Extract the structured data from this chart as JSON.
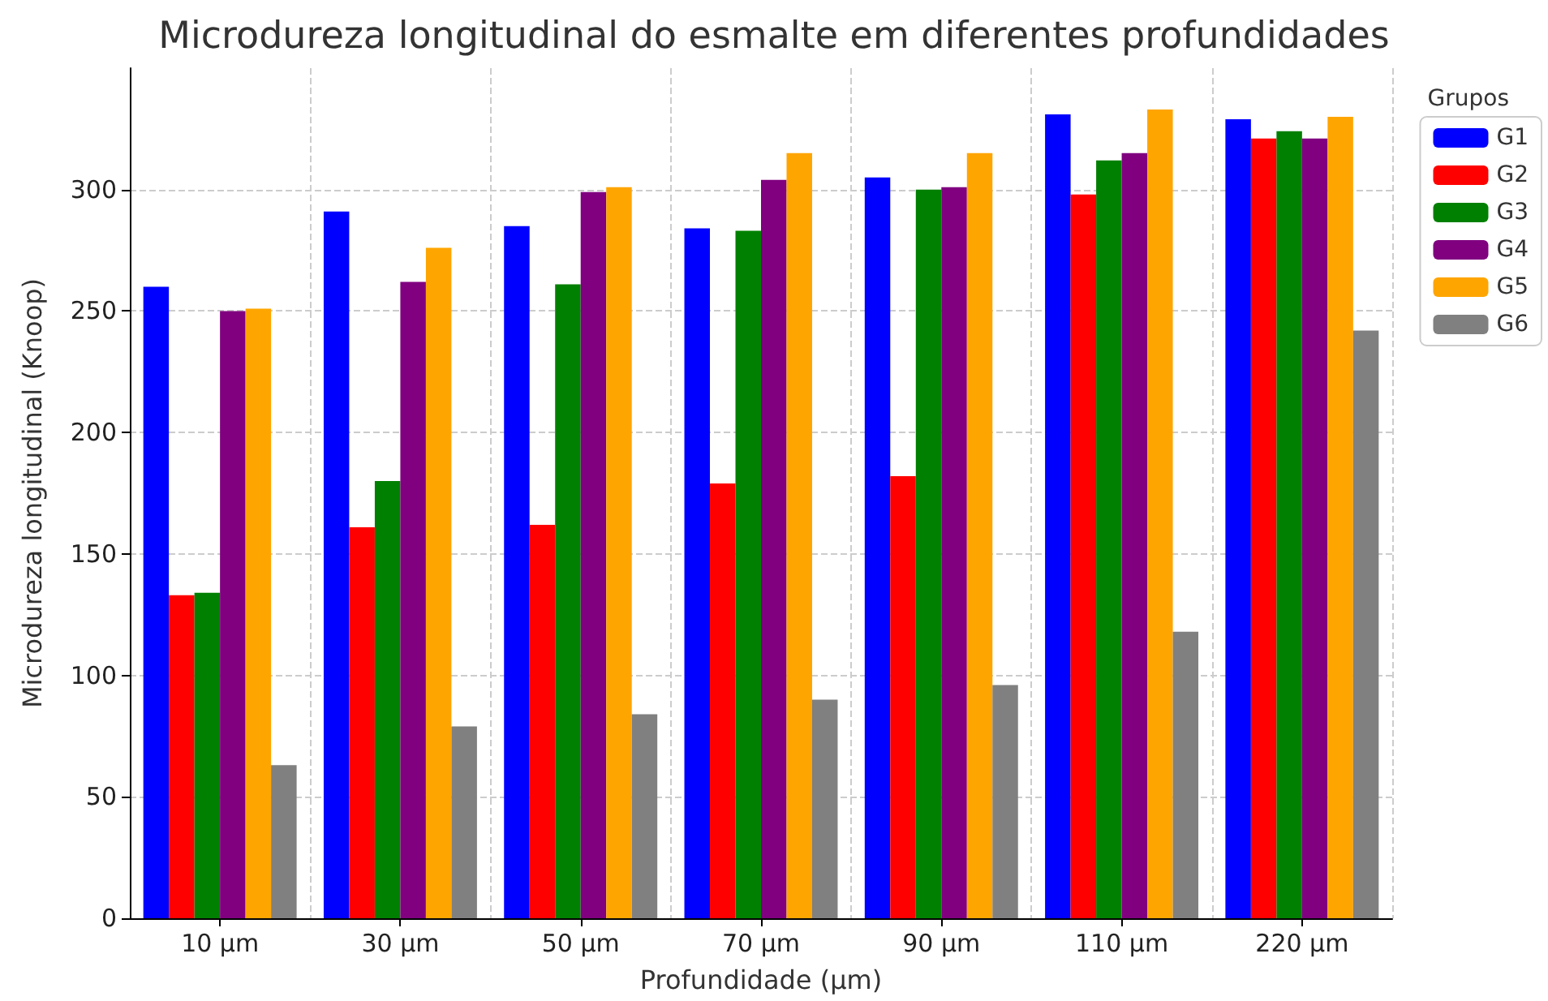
{
  "chart_data": {
    "type": "bar",
    "title": "Microdureza longitudinal do esmalte em diferentes profundidades",
    "xlabel": "Profundidade (µm)",
    "ylabel": "Microdureza longitudinal (Knoop)",
    "legend_title": "Grupos",
    "categories": [
      "10 µm",
      "30 µm",
      "50 µm",
      "70 µm",
      "90 µm",
      "110 µm",
      "220 µm"
    ],
    "series": [
      {
        "name": "G1",
        "color": "#0000ff",
        "values": [
          260,
          291,
          285,
          284,
          305,
          331,
          329
        ]
      },
      {
        "name": "G2",
        "color": "#ff0000",
        "values": [
          133,
          161,
          162,
          179,
          182,
          298,
          321
        ]
      },
      {
        "name": "G3",
        "color": "#008000",
        "values": [
          134,
          180,
          261,
          283,
          300,
          312,
          324
        ]
      },
      {
        "name": "G4",
        "color": "#800080",
        "values": [
          250,
          262,
          299,
          304,
          301,
          315,
          321
        ]
      },
      {
        "name": "G5",
        "color": "#ffa500",
        "values": [
          251,
          276,
          301,
          315,
          315,
          333,
          330
        ]
      },
      {
        "name": "G6",
        "color": "#808080",
        "values": [
          63,
          79,
          84,
          90,
          96,
          118,
          242
        ]
      }
    ],
    "ylim": [
      0,
      350
    ],
    "yticks": [
      0,
      50,
      100,
      150,
      200,
      250,
      300
    ],
    "grid": true,
    "legend": "right"
  }
}
